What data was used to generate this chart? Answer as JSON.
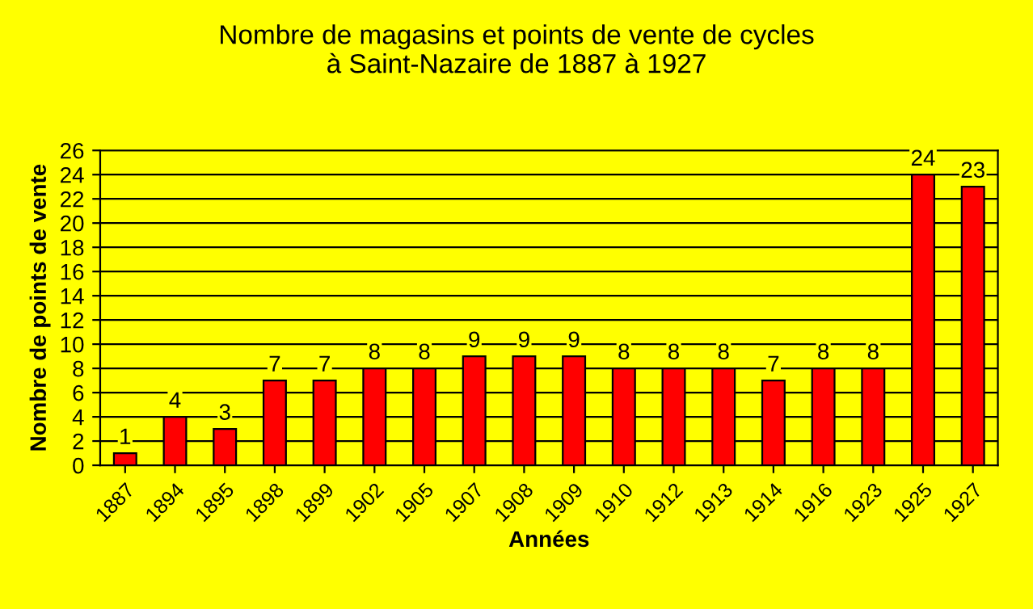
{
  "chart_data": {
    "type": "bar",
    "title": "Nombre de magasins et points de vente de cycles\nà Saint-Nazaire de 1887 à 1927",
    "xlabel": "Années",
    "ylabel": "Nombre de points de vente",
    "categories": [
      "1887",
      "1894",
      "1895",
      "1898",
      "1899",
      "1902",
      "1905",
      "1907",
      "1908",
      "1909",
      "1910",
      "1912",
      "1913",
      "1914",
      "1916",
      "1923",
      "1925",
      "1927"
    ],
    "values": [
      1,
      4,
      3,
      7,
      7,
      8,
      8,
      9,
      9,
      9,
      8,
      8,
      8,
      7,
      8,
      8,
      24,
      23
    ],
    "color": "#ff0000",
    "ylim": [
      0,
      26
    ],
    "yticks": [
      0,
      2,
      4,
      6,
      8,
      10,
      12,
      14,
      16,
      18,
      20,
      22,
      24,
      26
    ],
    "grid": "y",
    "data_labels": true
  }
}
